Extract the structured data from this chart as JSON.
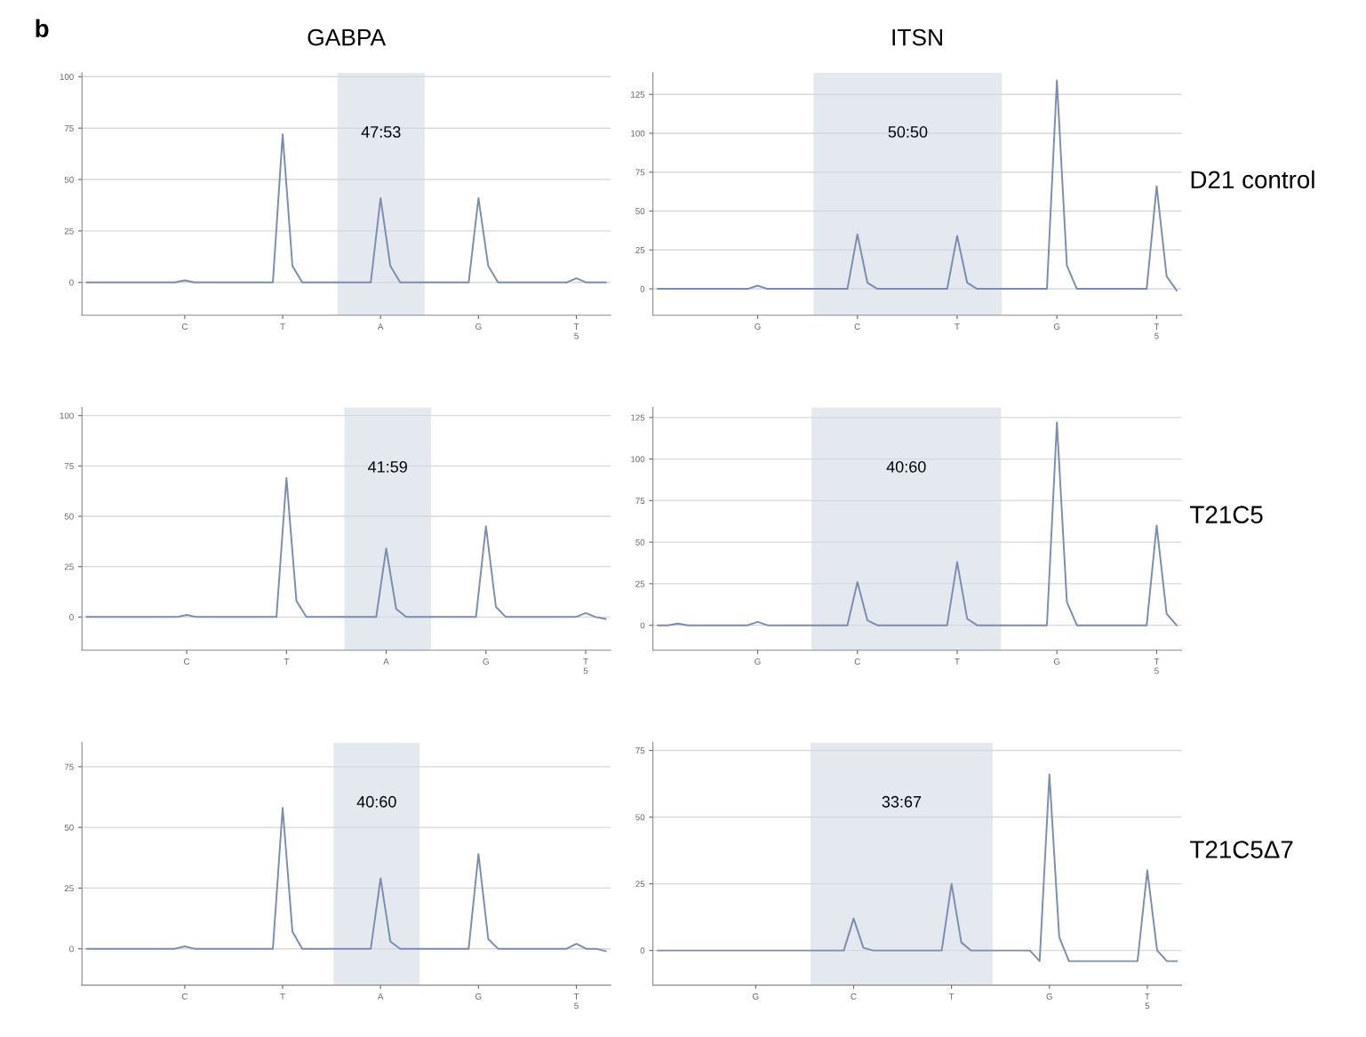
{
  "chart_data": [
    {
      "type": "line",
      "title": "GABPA",
      "annotations": [
        "47:53",
        "b"
      ],
      "grid": "y",
      "ylim": [
        -16,
        102
      ],
      "yticks": [
        0,
        25,
        50,
        75,
        100
      ],
      "categories": [
        null,
        null,
        null,
        null,
        null,
        null,
        null,
        null,
        null,
        null,
        "C",
        null,
        null,
        null,
        null,
        null,
        null,
        null,
        null,
        null,
        "T",
        null,
        null,
        null,
        null,
        null,
        null,
        null,
        null,
        null,
        "A",
        null,
        null,
        null,
        null,
        null,
        null,
        null,
        null,
        null,
        "G",
        null,
        null,
        null,
        null,
        null,
        null,
        null,
        null,
        null,
        "T\n5",
        null,
        null,
        null
      ],
      "series": [
        {
          "color": "#7a8db0",
          "values": [
            0,
            0,
            0,
            0,
            0,
            0,
            0,
            0,
            0,
            0,
            1,
            0,
            0,
            0,
            0,
            0,
            0,
            0,
            0,
            0,
            72,
            8,
            0,
            0,
            0,
            0,
            0,
            0,
            0,
            0,
            41,
            8,
            0,
            0,
            0,
            0,
            0,
            0,
            0,
            0,
            41,
            8,
            0,
            0,
            0,
            0,
            0,
            0,
            0,
            0,
            2,
            0,
            0,
            0
          ]
        }
      ]
    },
    {
      "type": "line",
      "title": "ITSN",
      "annotations": [
        "50:50",
        "D21 control"
      ],
      "grid": "y",
      "ylim": [
        -17,
        139
      ],
      "yticks": [
        0,
        25,
        50,
        75,
        100,
        125
      ],
      "categories": [
        null,
        null,
        null,
        null,
        null,
        null,
        null,
        null,
        null,
        null,
        "G",
        null,
        null,
        null,
        null,
        null,
        null,
        null,
        null,
        null,
        "C",
        null,
        null,
        null,
        null,
        null,
        null,
        null,
        null,
        null,
        "T",
        null,
        null,
        null,
        null,
        null,
        null,
        null,
        null,
        null,
        "G",
        null,
        null,
        null,
        null,
        null,
        null,
        null,
        null,
        null,
        "T\n5",
        null,
        null
      ],
      "series": [
        {
          "color": "#7a8db0",
          "values": [
            0,
            0,
            0,
            0,
            0,
            0,
            0,
            0,
            0,
            0,
            2,
            0,
            0,
            0,
            0,
            0,
            0,
            0,
            0,
            0,
            35,
            4,
            0,
            0,
            0,
            0,
            0,
            0,
            0,
            0,
            34,
            4,
            0,
            0,
            0,
            0,
            0,
            0,
            0,
            0,
            134,
            15,
            0,
            0,
            0,
            0,
            0,
            0,
            0,
            0,
            66,
            8,
            -1
          ]
        }
      ]
    },
    {
      "type": "line",
      "annotations": [
        "41:59"
      ],
      "grid": "y",
      "ylim": [
        -16.5,
        104
      ],
      "yticks": [
        0,
        25,
        50,
        75,
        100
      ],
      "categories": [
        null,
        null,
        null,
        null,
        null,
        null,
        null,
        null,
        null,
        null,
        "C",
        null,
        null,
        null,
        null,
        null,
        null,
        null,
        null,
        null,
        "T",
        null,
        null,
        null,
        null,
        null,
        null,
        null,
        null,
        null,
        "A",
        null,
        null,
        null,
        null,
        null,
        null,
        null,
        null,
        null,
        "G",
        null,
        null,
        null,
        null,
        null,
        null,
        null,
        null,
        null,
        "T\n5",
        null,
        null
      ],
      "series": [
        {
          "color": "#7a8db0",
          "values": [
            0,
            0,
            0,
            0,
            0,
            0,
            0,
            0,
            0,
            0,
            1,
            0,
            0,
            0,
            0,
            0,
            0,
            0,
            0,
            0,
            69,
            8,
            0,
            0,
            0,
            0,
            0,
            0,
            0,
            0,
            34,
            4,
            0,
            0,
            0,
            0,
            0,
            0,
            0,
            0,
            45,
            5,
            0,
            0,
            0,
            0,
            0,
            0,
            0,
            0,
            2,
            0,
            -1
          ]
        }
      ]
    },
    {
      "type": "line",
      "annotations": [
        "40:60",
        "T21C5"
      ],
      "grid": "y",
      "ylim": [
        -15,
        131
      ],
      "yticks": [
        0,
        25,
        50,
        75,
        100,
        125
      ],
      "categories": [
        null,
        null,
        null,
        null,
        null,
        null,
        null,
        null,
        null,
        null,
        "G",
        null,
        null,
        null,
        null,
        null,
        null,
        null,
        null,
        null,
        "C",
        null,
        null,
        null,
        null,
        null,
        null,
        null,
        null,
        null,
        "T",
        null,
        null,
        null,
        null,
        null,
        null,
        null,
        null,
        null,
        "G",
        null,
        null,
        null,
        null,
        null,
        null,
        null,
        null,
        null,
        "T\n5",
        null,
        null
      ],
      "series": [
        {
          "color": "#7a8db0",
          "values": [
            0,
            0,
            1,
            0,
            0,
            0,
            0,
            0,
            0,
            0,
            2,
            0,
            0,
            0,
            0,
            0,
            0,
            0,
            0,
            0,
            26,
            3,
            0,
            0,
            0,
            0,
            0,
            0,
            0,
            0,
            38,
            4,
            0,
            0,
            0,
            0,
            0,
            0,
            0,
            0,
            122,
            14,
            0,
            0,
            0,
            0,
            0,
            0,
            0,
            0,
            60,
            7,
            0
          ]
        }
      ]
    },
    {
      "type": "line",
      "annotations": [
        "40:60"
      ],
      "grid": "y",
      "ylim": [
        -15,
        85
      ],
      "yticks": [
        0,
        25,
        50,
        75
      ],
      "categories": [
        null,
        null,
        null,
        null,
        null,
        null,
        null,
        null,
        null,
        null,
        "C",
        null,
        null,
        null,
        null,
        null,
        null,
        null,
        null,
        null,
        "T",
        null,
        null,
        null,
        null,
        null,
        null,
        null,
        null,
        null,
        "A",
        null,
        null,
        null,
        null,
        null,
        null,
        null,
        null,
        null,
        "G",
        null,
        null,
        null,
        null,
        null,
        null,
        null,
        null,
        null,
        "T\n5",
        null,
        null,
        null
      ],
      "series": [
        {
          "color": "#7a8db0",
          "values": [
            0,
            0,
            0,
            0,
            0,
            0,
            0,
            0,
            0,
            0,
            1,
            0,
            0,
            0,
            0,
            0,
            0,
            0,
            0,
            0,
            58,
            7,
            0,
            0,
            0,
            0,
            0,
            0,
            0,
            0,
            29,
            3,
            0,
            0,
            0,
            0,
            0,
            0,
            0,
            0,
            39,
            4,
            0,
            0,
            0,
            0,
            0,
            0,
            0,
            0,
            2,
            0,
            0,
            -1
          ]
        }
      ]
    },
    {
      "type": "line",
      "annotations": [
        "33:67",
        "T21C5Δ7"
      ],
      "grid": "y",
      "ylim": [
        -13,
        78
      ],
      "yticks": [
        0,
        25,
        50,
        75
      ],
      "categories": [
        null,
        null,
        null,
        null,
        null,
        null,
        null,
        null,
        null,
        null,
        "G",
        null,
        null,
        null,
        null,
        null,
        null,
        null,
        null,
        null,
        "C",
        null,
        null,
        null,
        null,
        null,
        null,
        null,
        null,
        null,
        "T",
        null,
        null,
        null,
        null,
        null,
        null,
        null,
        null,
        null,
        "G",
        null,
        null,
        null,
        null,
        null,
        null,
        null,
        null,
        null,
        "T\n5",
        null,
        null,
        null
      ],
      "series": [
        {
          "color": "#7a8db0",
          "values": [
            0,
            0,
            0,
            0,
            0,
            0,
            0,
            0,
            0,
            0,
            0,
            0,
            0,
            0,
            0,
            0,
            0,
            0,
            0,
            0,
            12,
            1,
            0,
            0,
            0,
            0,
            0,
            0,
            0,
            0,
            25,
            3,
            0,
            0,
            0,
            0,
            0,
            0,
            0,
            -4,
            66,
            5,
            -4,
            -4,
            -4,
            -4,
            -4,
            -4,
            -4,
            -4,
            30,
            0,
            -4,
            -4
          ]
        }
      ]
    }
  ]
}
